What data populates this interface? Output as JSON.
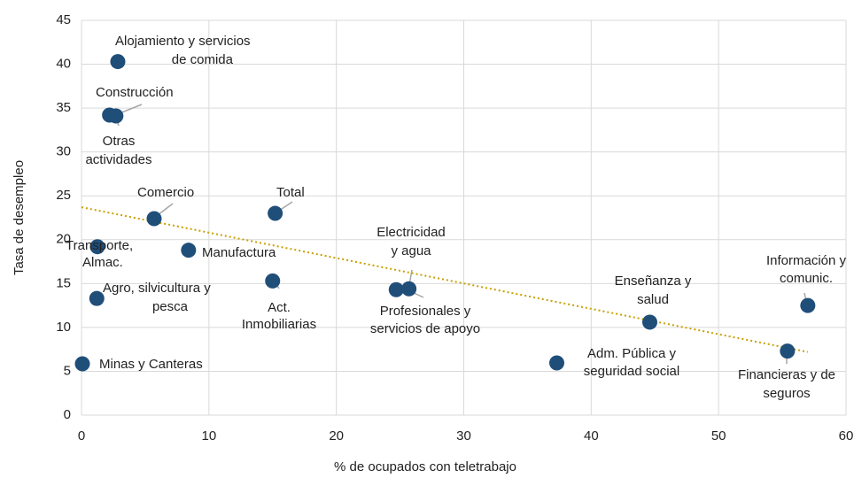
{
  "chart_data": {
    "type": "scatter",
    "x_label": "% de ocupados con teletrabajo",
    "y_label": "Tasa de desempleo",
    "labels": [
      [
        "Alojamiento y servicios",
        "de comida"
      ],
      [
        "Construcción"
      ],
      [
        "Otras",
        "actividades"
      ],
      [
        "Comercio"
      ],
      [
        "Total"
      ],
      [
        "Transporte,",
        "Almac."
      ],
      [
        "Manufactura"
      ],
      [
        "Act.",
        "Inmobiliarias"
      ],
      [
        "Agro, silvicultura y",
        "pesca"
      ],
      [
        "Minas y Canteras"
      ],
      [
        "Electricidad",
        "y agua"
      ],
      [
        "Profesionales y",
        "servicios de apoyo"
      ],
      [
        "Adm. Pública y",
        "seguridad social"
      ],
      [
        "Enseñanza y",
        "salud"
      ],
      [
        "Información y",
        "comunic."
      ],
      [
        "Financieras y de",
        "seguros"
      ]
    ],
    "x": [
      2.85,
      2.2,
      2.7,
      5.7,
      15.2,
      1.25,
      8.4,
      15.0,
      1.2,
      0.07,
      25.7,
      24.7,
      37.3,
      44.6,
      57.0,
      55.4
    ],
    "values": [
      40.3,
      34.2,
      34.1,
      22.4,
      23.0,
      19.2,
      18.8,
      15.3,
      13.3,
      5.85,
      14.4,
      14.3,
      5.95,
      10.6,
      12.5,
      7.3
    ],
    "color": "#1f4e79",
    "trendline": {
      "x": [
        0,
        57
      ],
      "y": [
        23.7,
        7.2
      ],
      "color": "#c8a000"
    },
    "xlim": [
      0,
      60
    ],
    "xticks": [
      0,
      10,
      20,
      30,
      40,
      50,
      60
    ],
    "ylim": [
      0,
      45
    ],
    "yticks": [
      0,
      5,
      10,
      15,
      20,
      25,
      30,
      35,
      40,
      45
    ],
    "grid": true
  }
}
